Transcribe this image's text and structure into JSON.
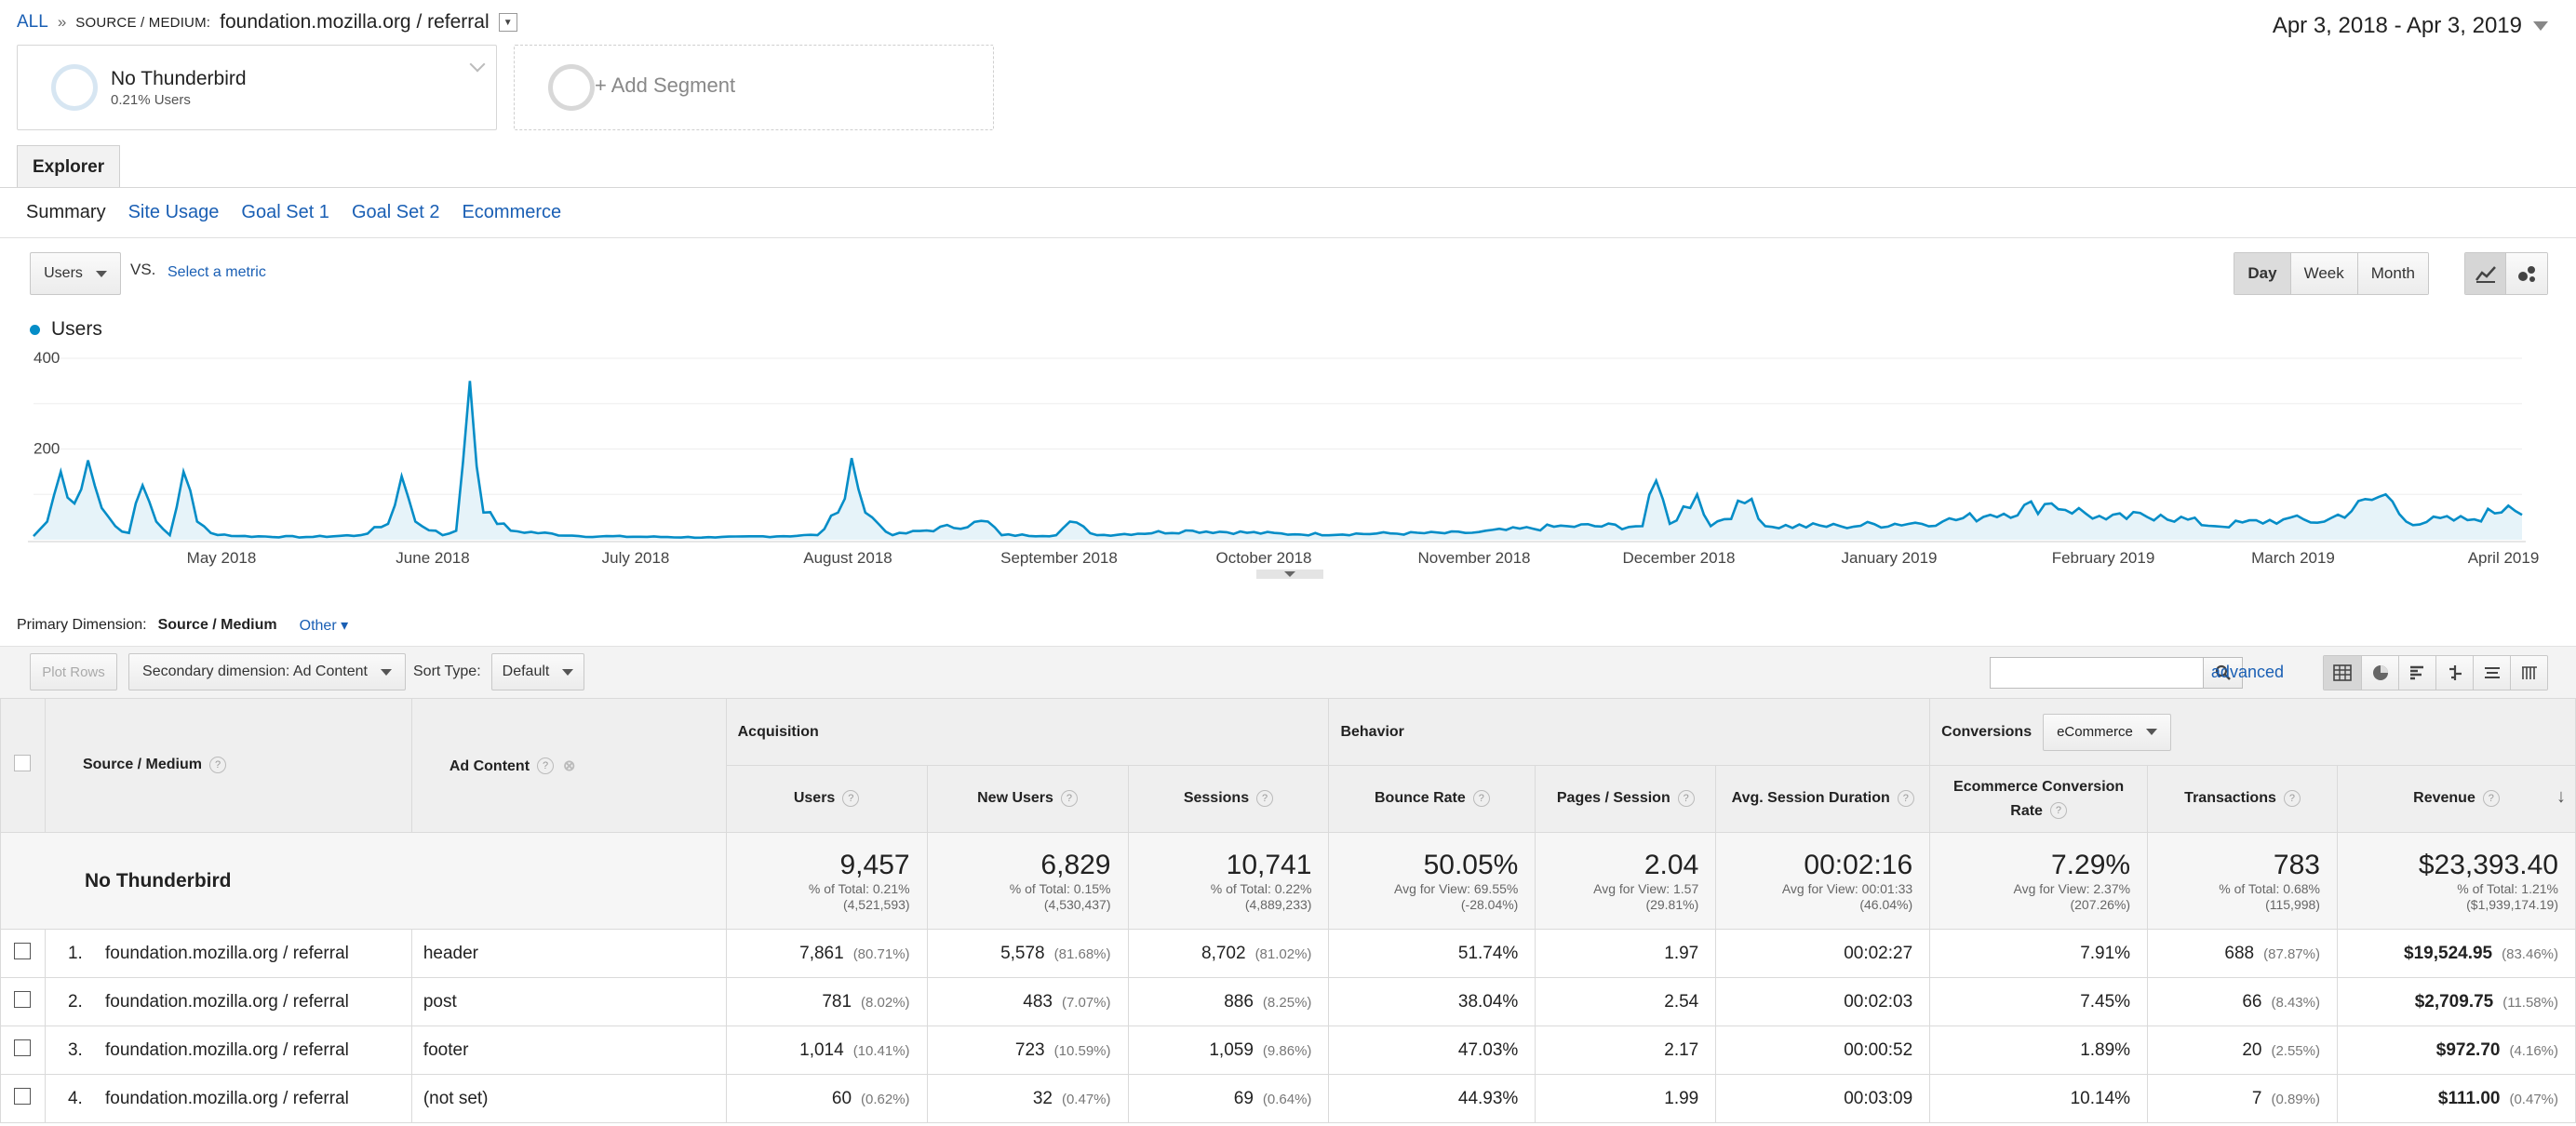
{
  "breadcrumb": {
    "all": "ALL",
    "sep": "»",
    "dimension": "SOURCE / MEDIUM:",
    "value": "foundation.mozilla.org / referral"
  },
  "date_range": "Apr 3, 2018 - Apr 3, 2019",
  "segments": [
    {
      "name": "No Thunderbird",
      "sub": "0.21% Users"
    },
    {
      "name": "+ Add Segment"
    }
  ],
  "tabs": {
    "explorer": "Explorer"
  },
  "subtabs": [
    "Summary",
    "Site Usage",
    "Goal Set 1",
    "Goal Set 2",
    "Ecommerce"
  ],
  "metric": {
    "selected": "Users",
    "vs": "VS.",
    "select_metric": "Select a metric"
  },
  "period": [
    "Day",
    "Week",
    "Month"
  ],
  "chart_data": {
    "type": "area",
    "series": [
      {
        "name": "Users",
        "color": "#058dc7"
      }
    ],
    "x_labels": [
      "May 2018",
      "June 2018",
      "July 2018",
      "August 2018",
      "September 2018",
      "October 2018",
      "November 2018",
      "December 2018",
      "January 2019",
      "February 2019",
      "March 2019",
      "April 2019"
    ],
    "y_ticks": [
      "200",
      "400"
    ],
    "ylim": [
      0,
      400
    ],
    "peaks": [
      {
        "day": 0,
        "value": 8
      },
      {
        "day": 2,
        "value": 40
      },
      {
        "day": 4,
        "value": 150
      },
      {
        "day": 6,
        "value": 80
      },
      {
        "day": 8,
        "value": 175
      },
      {
        "day": 10,
        "value": 70
      },
      {
        "day": 12,
        "value": 30
      },
      {
        "day": 14,
        "value": 15
      },
      {
        "day": 16,
        "value": 120
      },
      {
        "day": 18,
        "value": 40
      },
      {
        "day": 20,
        "value": 10
      },
      {
        "day": 22,
        "value": 150
      },
      {
        "day": 24,
        "value": 40
      },
      {
        "day": 26,
        "value": 15
      },
      {
        "day": 30,
        "value": 8
      },
      {
        "day": 40,
        "value": 6
      },
      {
        "day": 48,
        "value": 10
      },
      {
        "day": 52,
        "value": 35
      },
      {
        "day": 54,
        "value": 140
      },
      {
        "day": 56,
        "value": 40
      },
      {
        "day": 60,
        "value": 10
      },
      {
        "day": 62,
        "value": 20
      },
      {
        "day": 64,
        "value": 350
      },
      {
        "day": 66,
        "value": 60
      },
      {
        "day": 70,
        "value": 20
      },
      {
        "day": 80,
        "value": 8
      },
      {
        "day": 100,
        "value": 5
      },
      {
        "day": 115,
        "value": 10
      },
      {
        "day": 118,
        "value": 60
      },
      {
        "day": 120,
        "value": 180
      },
      {
        "day": 122,
        "value": 60
      },
      {
        "day": 126,
        "value": 10
      },
      {
        "day": 140,
        "value": 40
      },
      {
        "day": 142,
        "value": 10
      },
      {
        "day": 150,
        "value": 10
      },
      {
        "day": 152,
        "value": 40
      },
      {
        "day": 156,
        "value": 10
      },
      {
        "day": 170,
        "value": 20
      },
      {
        "day": 185,
        "value": 12
      },
      {
        "day": 210,
        "value": 15
      },
      {
        "day": 225,
        "value": 30
      },
      {
        "day": 236,
        "value": 30
      },
      {
        "day": 238,
        "value": 130
      },
      {
        "day": 240,
        "value": 35
      },
      {
        "day": 244,
        "value": 100
      },
      {
        "day": 246,
        "value": 30
      },
      {
        "day": 252,
        "value": 90
      },
      {
        "day": 254,
        "value": 30
      },
      {
        "day": 265,
        "value": 30
      },
      {
        "day": 280,
        "value": 40
      },
      {
        "day": 287,
        "value": 55
      },
      {
        "day": 296,
        "value": 80
      },
      {
        "day": 304,
        "value": 45
      },
      {
        "day": 312,
        "value": 55
      },
      {
        "day": 320,
        "value": 30
      },
      {
        "day": 330,
        "value": 45
      },
      {
        "day": 336,
        "value": 40
      },
      {
        "day": 345,
        "value": 100
      },
      {
        "day": 348,
        "value": 40
      },
      {
        "day": 358,
        "value": 45
      },
      {
        "day": 363,
        "value": 75
      },
      {
        "day": 368,
        "value": 65
      },
      {
        "day": 371,
        "value": 35
      },
      {
        "day": 374,
        "value": 45
      }
    ],
    "days": 365
  },
  "primary_dimension": {
    "label": "Primary Dimension:",
    "value": "Source / Medium",
    "other": "Other"
  },
  "toolbar": {
    "plot_rows": "Plot Rows",
    "secondary_dimension": "Secondary dimension: Ad Content",
    "sort_type_label": "Sort Type:",
    "sort_type": "Default",
    "advanced": "advanced"
  },
  "table": {
    "headers": {
      "source_medium": "Source / Medium",
      "ad_content": "Ad Content",
      "acquisition": "Acquisition",
      "behavior": "Behavior",
      "conversions": "Conversions",
      "conversion_type": "eCommerce",
      "cols": [
        "Users",
        "New Users",
        "Sessions",
        "Bounce Rate",
        "Pages / Session",
        "Avg. Session Duration",
        "Ecommerce Conversion Rate",
        "Transactions",
        "Revenue"
      ]
    },
    "totals": {
      "label": "No Thunderbird",
      "cells": [
        {
          "value": "9,457",
          "line1": "% of Total: 0.21%",
          "line2": "(4,521,593)"
        },
        {
          "value": "6,829",
          "line1": "% of Total: 0.15%",
          "line2": "(4,530,437)"
        },
        {
          "value": "10,741",
          "line1": "% of Total: 0.22%",
          "line2": "(4,889,233)"
        },
        {
          "value": "50.05%",
          "line1": "Avg for View: 69.55%",
          "line2": "(-28.04%)"
        },
        {
          "value": "2.04",
          "line1": "Avg for View: 1.57",
          "line2": "(29.81%)"
        },
        {
          "value": "00:02:16",
          "line1": "Avg for View: 00:01:33",
          "line2": "(46.04%)"
        },
        {
          "value": "7.29%",
          "line1": "Avg for View: 2.37%",
          "line2": "(207.26%)"
        },
        {
          "value": "783",
          "line1": "% of Total: 0.68%",
          "line2": "(115,998)"
        },
        {
          "value": "$23,393.40",
          "line1": "% of Total: 1.21%",
          "line2": "($1,939,174.19)"
        }
      ]
    },
    "rows": [
      {
        "idx": "1.",
        "source": "foundation.mozilla.org / referral",
        "ad": "header",
        "users": "7,861",
        "users_pct": "(80.71%)",
        "new_users": "5,578",
        "new_users_pct": "(81.68%)",
        "sessions": "8,702",
        "sessions_pct": "(81.02%)",
        "bounce": "51.74%",
        "pages": "1.97",
        "duration": "00:02:27",
        "conv": "7.91%",
        "trans": "688",
        "trans_pct": "(87.87%)",
        "revenue": "$19,524.95",
        "revenue_pct": "(83.46%)"
      },
      {
        "idx": "2.",
        "source": "foundation.mozilla.org / referral",
        "ad": "post",
        "users": "781",
        "users_pct": "(8.02%)",
        "new_users": "483",
        "new_users_pct": "(7.07%)",
        "sessions": "886",
        "sessions_pct": "(8.25%)",
        "bounce": "38.04%",
        "pages": "2.54",
        "duration": "00:02:03",
        "conv": "7.45%",
        "trans": "66",
        "trans_pct": "(8.43%)",
        "revenue": "$2,709.75",
        "revenue_pct": "(11.58%)"
      },
      {
        "idx": "3.",
        "source": "foundation.mozilla.org / referral",
        "ad": "footer",
        "users": "1,014",
        "users_pct": "(10.41%)",
        "new_users": "723",
        "new_users_pct": "(10.59%)",
        "sessions": "1,059",
        "sessions_pct": "(9.86%)",
        "bounce": "47.03%",
        "pages": "2.17",
        "duration": "00:00:52",
        "conv": "1.89%",
        "trans": "20",
        "trans_pct": "(2.55%)",
        "revenue": "$972.70",
        "revenue_pct": "(4.16%)"
      },
      {
        "idx": "4.",
        "source": "foundation.mozilla.org / referral",
        "ad": "(not set)",
        "users": "60",
        "users_pct": "(0.62%)",
        "new_users": "32",
        "new_users_pct": "(0.47%)",
        "sessions": "69",
        "sessions_pct": "(0.64%)",
        "bounce": "44.93%",
        "pages": "1.99",
        "duration": "00:03:09",
        "conv": "10.14%",
        "trans": "7",
        "trans_pct": "(0.89%)",
        "revenue": "$111.00",
        "revenue_pct": "(0.47%)"
      }
    ]
  }
}
